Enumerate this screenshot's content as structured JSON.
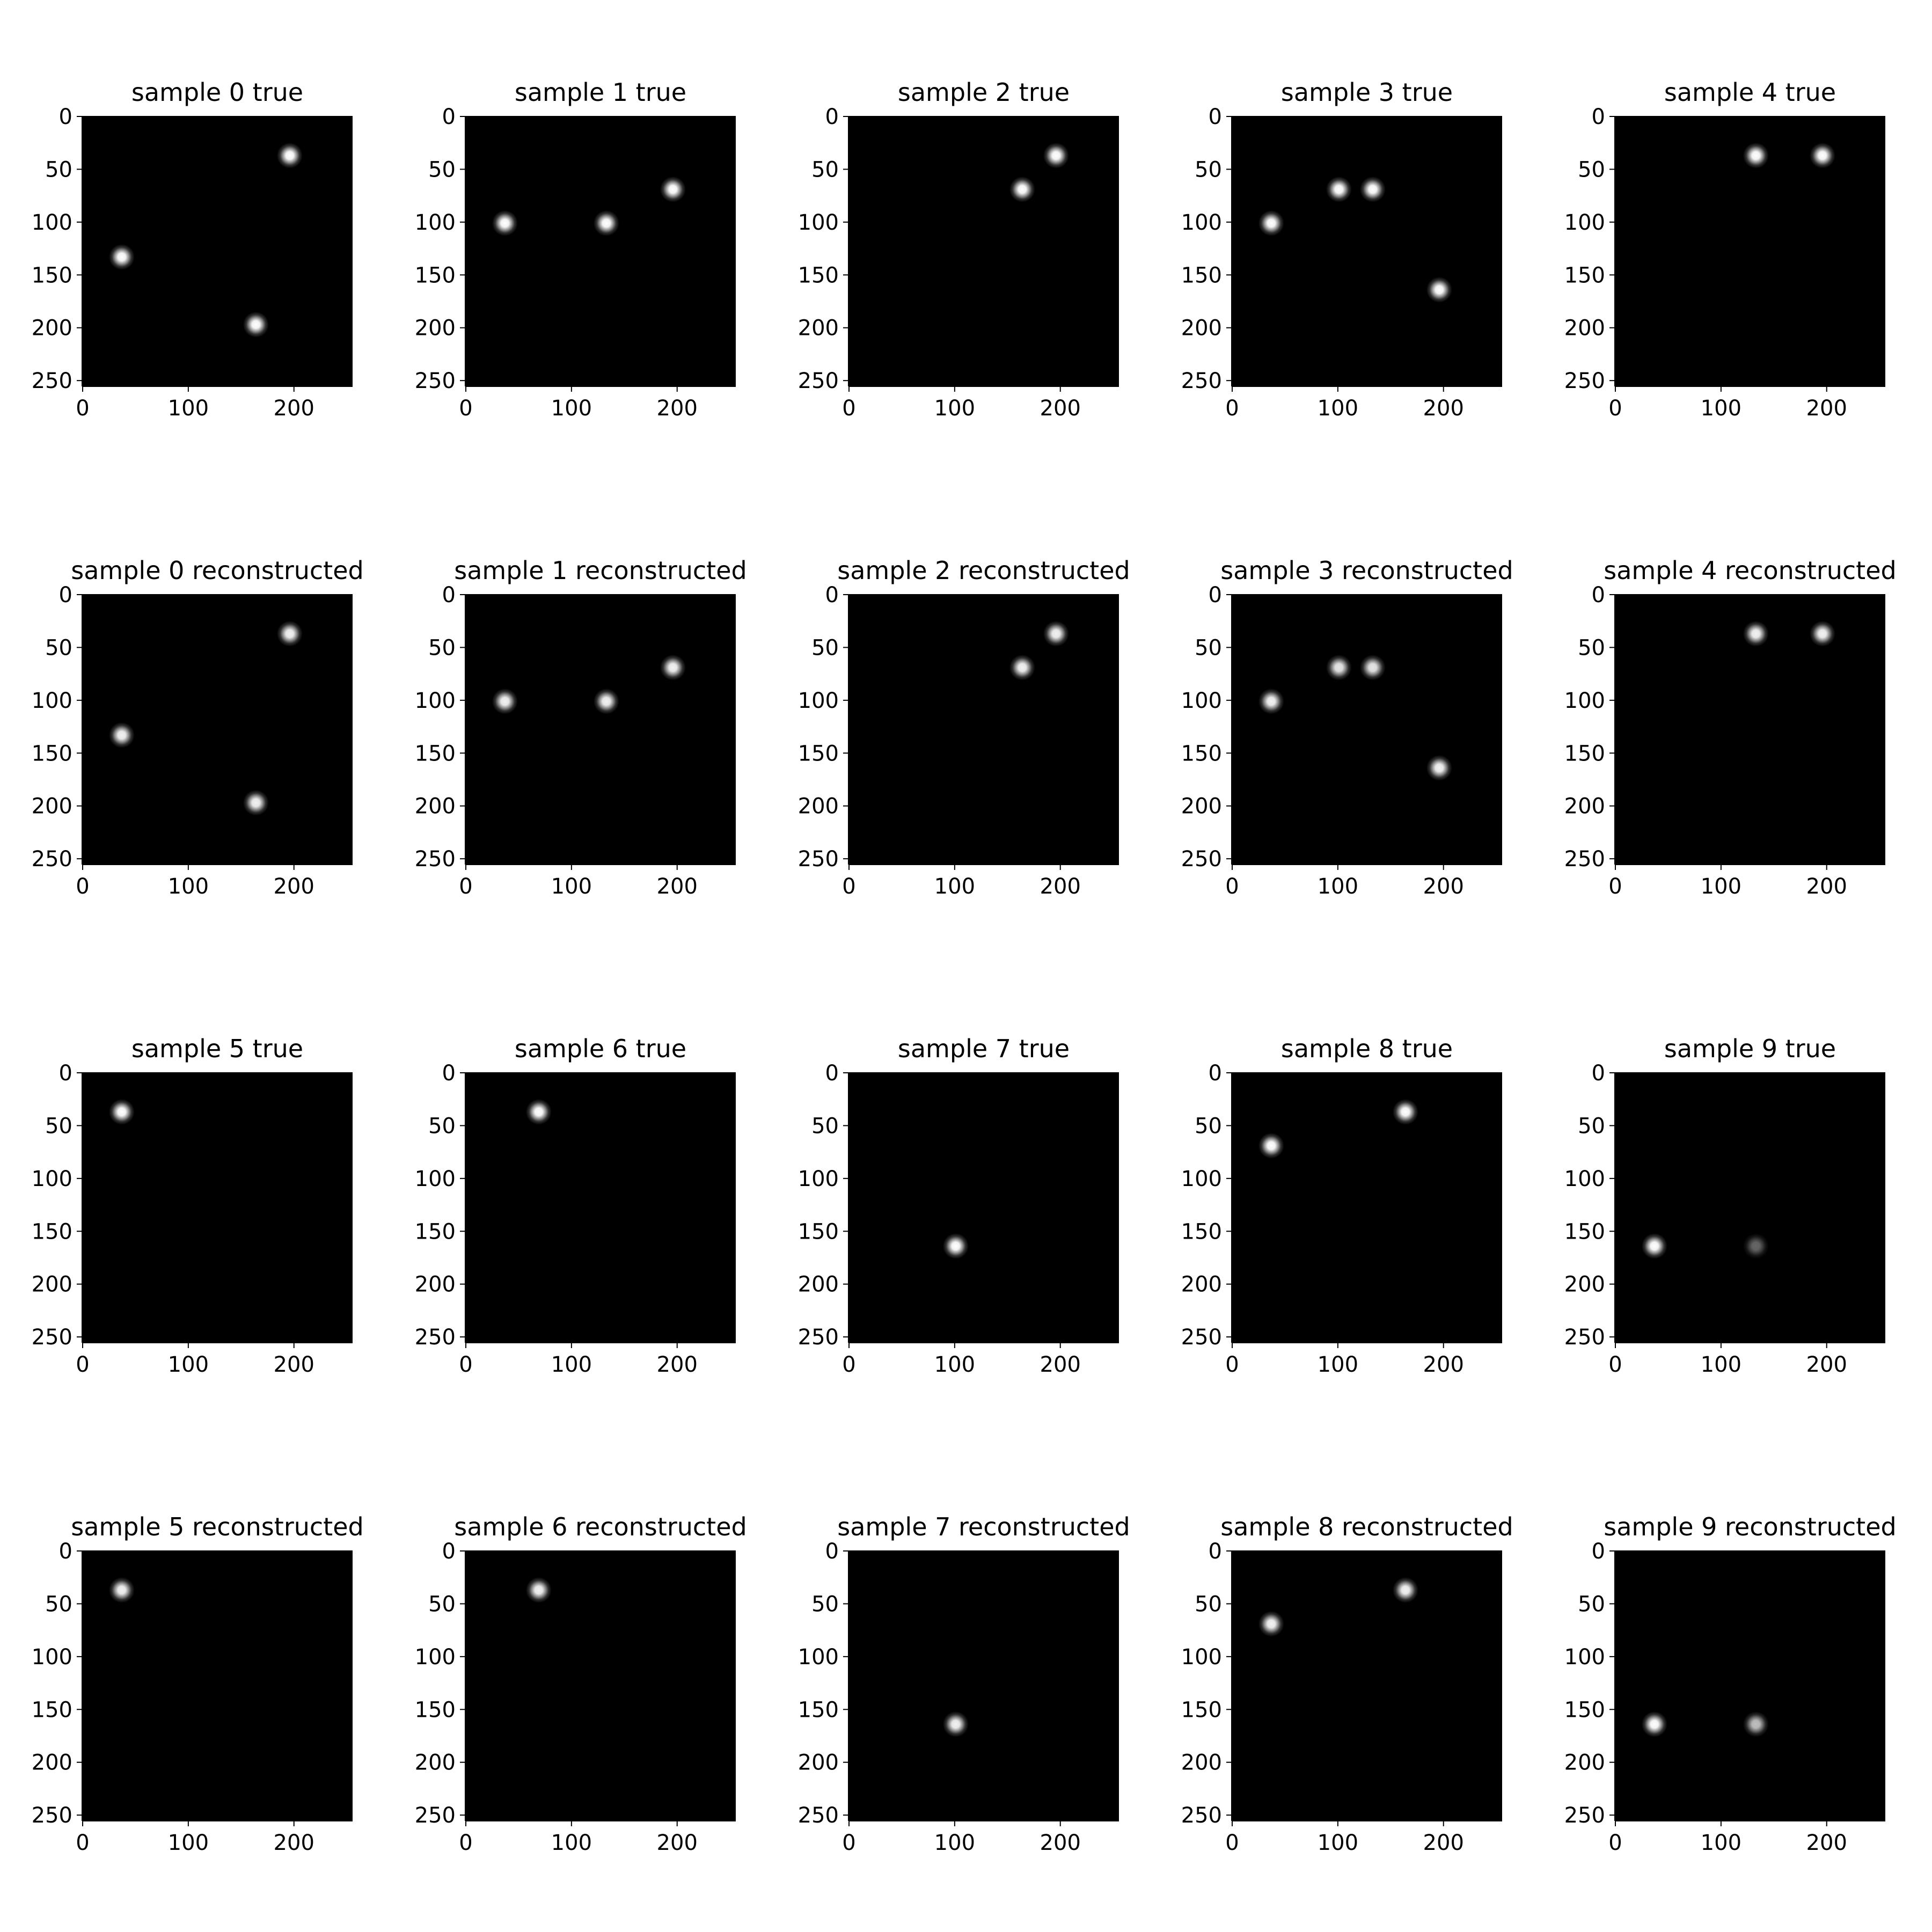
{
  "chart_data": {
    "type": "heatmap",
    "layout": {
      "rows": 4,
      "cols": 5
    },
    "image_extent": [
      0,
      255
    ],
    "x_ticks": [
      "0",
      "100",
      "200"
    ],
    "y_ticks": [
      "0",
      "50",
      "100",
      "150",
      "200",
      "250"
    ],
    "colormap": "gray",
    "panels": [
      {
        "title": "sample 0 true",
        "spots": [
          {
            "x": 196,
            "y": 37,
            "intensity": 1.0
          },
          {
            "x": 37,
            "y": 133,
            "intensity": 1.0
          },
          {
            "x": 164,
            "y": 197,
            "intensity": 1.0
          }
        ]
      },
      {
        "title": "sample 1 true",
        "spots": [
          {
            "x": 37,
            "y": 101,
            "intensity": 1.0
          },
          {
            "x": 133,
            "y": 101,
            "intensity": 1.0
          },
          {
            "x": 196,
            "y": 69,
            "intensity": 1.0
          }
        ]
      },
      {
        "title": "sample 2 true",
        "spots": [
          {
            "x": 164,
            "y": 69,
            "intensity": 1.0
          },
          {
            "x": 196,
            "y": 37,
            "intensity": 1.0
          }
        ]
      },
      {
        "title": "sample 3 true",
        "spots": [
          {
            "x": 37,
            "y": 101,
            "intensity": 1.0
          },
          {
            "x": 101,
            "y": 69,
            "intensity": 1.0
          },
          {
            "x": 133,
            "y": 69,
            "intensity": 1.0
          },
          {
            "x": 196,
            "y": 164,
            "intensity": 1.0
          }
        ]
      },
      {
        "title": "sample 4 true",
        "spots": [
          {
            "x": 133,
            "y": 37,
            "intensity": 1.0
          },
          {
            "x": 196,
            "y": 37,
            "intensity": 1.0
          }
        ]
      },
      {
        "title": "sample 0 reconstructed",
        "spots": [
          {
            "x": 196,
            "y": 37,
            "intensity": 0.95
          },
          {
            "x": 37,
            "y": 133,
            "intensity": 0.95
          },
          {
            "x": 164,
            "y": 197,
            "intensity": 0.95
          }
        ]
      },
      {
        "title": "sample 1 reconstructed",
        "spots": [
          {
            "x": 37,
            "y": 101,
            "intensity": 0.95
          },
          {
            "x": 133,
            "y": 101,
            "intensity": 0.95
          },
          {
            "x": 196,
            "y": 69,
            "intensity": 0.95
          }
        ]
      },
      {
        "title": "sample 2 reconstructed",
        "spots": [
          {
            "x": 164,
            "y": 69,
            "intensity": 0.95
          },
          {
            "x": 196,
            "y": 37,
            "intensity": 0.95
          }
        ]
      },
      {
        "title": "sample 3 reconstructed",
        "spots": [
          {
            "x": 37,
            "y": 101,
            "intensity": 0.95
          },
          {
            "x": 101,
            "y": 69,
            "intensity": 0.9
          },
          {
            "x": 133,
            "y": 69,
            "intensity": 0.9
          },
          {
            "x": 196,
            "y": 164,
            "intensity": 0.95
          }
        ]
      },
      {
        "title": "sample 4 reconstructed",
        "spots": [
          {
            "x": 133,
            "y": 37,
            "intensity": 0.95
          },
          {
            "x": 196,
            "y": 37,
            "intensity": 0.95
          }
        ]
      },
      {
        "title": "sample 5 true",
        "spots": [
          {
            "x": 37,
            "y": 37,
            "intensity": 1.0
          }
        ]
      },
      {
        "title": "sample 6 true",
        "spots": [
          {
            "x": 69,
            "y": 37,
            "intensity": 1.0
          }
        ]
      },
      {
        "title": "sample 7 true",
        "spots": [
          {
            "x": 101,
            "y": 164,
            "intensity": 1.0
          }
        ]
      },
      {
        "title": "sample 8 true",
        "spots": [
          {
            "x": 37,
            "y": 69,
            "intensity": 1.0
          },
          {
            "x": 164,
            "y": 37,
            "intensity": 1.0
          }
        ]
      },
      {
        "title": "sample 9 true",
        "spots": [
          {
            "x": 37,
            "y": 164,
            "intensity": 1.0
          },
          {
            "x": 133,
            "y": 164,
            "intensity": 0.4
          }
        ]
      },
      {
        "title": "sample 5 reconstructed",
        "spots": [
          {
            "x": 37,
            "y": 37,
            "intensity": 0.95
          }
        ]
      },
      {
        "title": "sample 6 reconstructed",
        "spots": [
          {
            "x": 69,
            "y": 37,
            "intensity": 0.95
          }
        ]
      },
      {
        "title": "sample 7 reconstructed",
        "spots": [
          {
            "x": 101,
            "y": 164,
            "intensity": 0.95
          }
        ]
      },
      {
        "title": "sample 8 reconstructed",
        "spots": [
          {
            "x": 37,
            "y": 69,
            "intensity": 0.95
          },
          {
            "x": 164,
            "y": 37,
            "intensity": 0.95
          }
        ]
      },
      {
        "title": "sample 9 reconstructed",
        "spots": [
          {
            "x": 37,
            "y": 164,
            "intensity": 1.0
          },
          {
            "x": 133,
            "y": 164,
            "intensity": 0.75
          }
        ]
      }
    ]
  }
}
